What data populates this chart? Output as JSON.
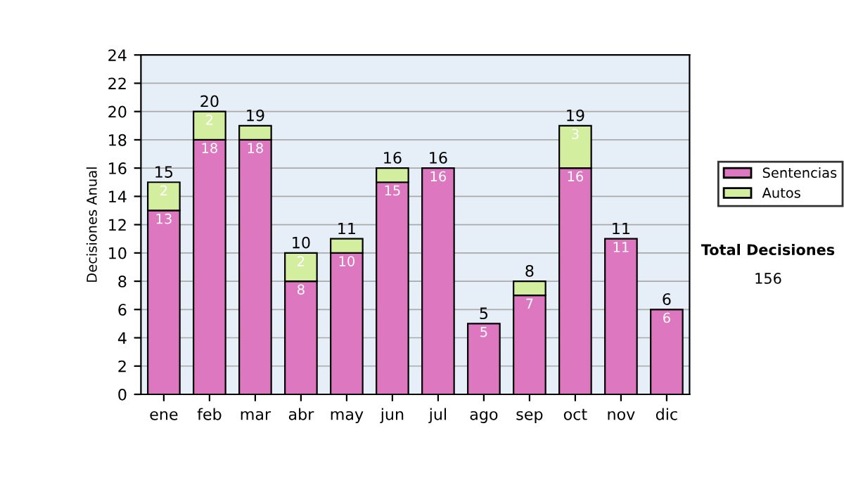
{
  "chart_data": {
    "type": "bar",
    "stacked": true,
    "ylabel": "Decisiones Anual",
    "categories": [
      "ene",
      "feb",
      "mar",
      "abr",
      "may",
      "jun",
      "jul",
      "ago",
      "sep",
      "oct",
      "nov",
      "dic"
    ],
    "series": [
      {
        "name": "Sentencias",
        "color": "#dd77c0",
        "values": [
          13,
          18,
          18,
          8,
          10,
          15,
          16,
          5,
          7,
          16,
          11,
          6
        ],
        "value_labels": [
          "13",
          "18",
          "18",
          "8",
          "10",
          "15",
          "16",
          "5",
          "7",
          "16",
          "11",
          "6"
        ]
      },
      {
        "name": "Autos",
        "color": "#d4eea0",
        "values": [
          2,
          2,
          1,
          2,
          1,
          1,
          null,
          null,
          1,
          3,
          null,
          null
        ],
        "value_labels": [
          "2",
          "2",
          null,
          "2",
          null,
          null,
          null,
          null,
          null,
          "3",
          null,
          null
        ]
      }
    ],
    "totals": [
      "15",
      "20",
      "19",
      "10",
      "11",
      "16",
      "16",
      "5",
      "8",
      "19",
      "11",
      "6"
    ],
    "ylim": [
      0,
      24
    ],
    "yticks": [
      0,
      2,
      4,
      6,
      8,
      10,
      12,
      14,
      16,
      18,
      20,
      22,
      24
    ],
    "grid": "y",
    "legend": "right",
    "annotations": [
      "Total Decisiones",
      "156"
    ]
  }
}
